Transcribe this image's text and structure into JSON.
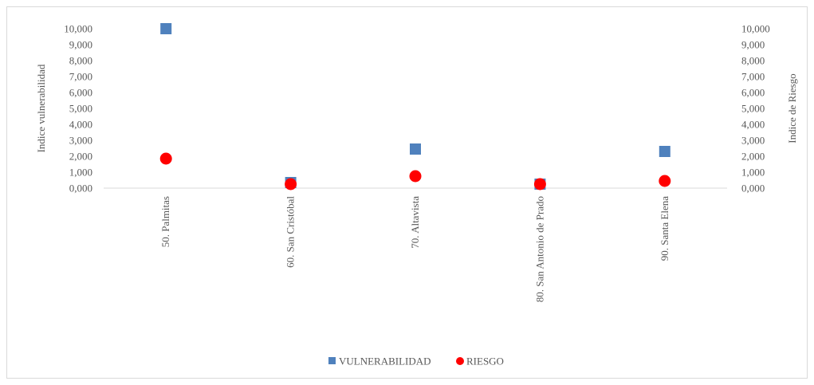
{
  "chart_data": {
    "type": "scatter",
    "categories": [
      "50. Palmitas",
      "60. San Cristóbal",
      "70. Altavista",
      "80. San Antonio de Prado",
      "90. Santa Elena"
    ],
    "series": [
      {
        "name": "VULNERABILIDAD",
        "marker": "square",
        "color": "#4f81bd",
        "axis": "left",
        "values": [
          10.0,
          0.35,
          2.45,
          0.25,
          2.3
        ]
      },
      {
        "name": "RIESGO",
        "marker": "circle",
        "color": "#ff0000",
        "axis": "right",
        "values": [
          1.85,
          0.25,
          0.75,
          0.25,
          0.45
        ]
      }
    ],
    "ylabel_left": "Indice vulnerabilidad",
    "ylabel_right": "Indice de Riesgo",
    "ylim": [
      0,
      10
    ],
    "yticks": [
      "0,000",
      "1,000",
      "2,000",
      "3,000",
      "4,000",
      "5,000",
      "6,000",
      "7,000",
      "8,000",
      "9,000",
      "10,000"
    ],
    "legend_position": "bottom",
    "grid": false
  }
}
